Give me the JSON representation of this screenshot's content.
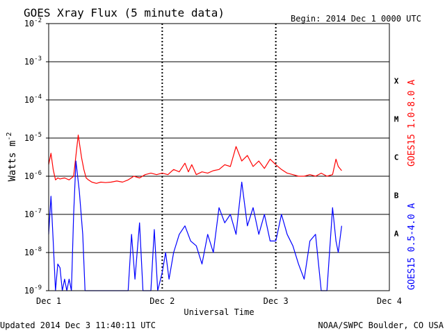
{
  "chart_data": {
    "type": "line",
    "title": "GOES Xray Flux (5 minute data)",
    "begin_label": "Begin:  2014 Dec 1 0000 UTC",
    "xlabel": "Universal Time",
    "ylabel": "Watts m",
    "ylabel_sup": "-2",
    "yscale": "log",
    "ylim": [
      1e-09,
      0.01
    ],
    "xlim": [
      0,
      3
    ],
    "x_unit": "days since 2014 Dec 1 0000 UTC",
    "x_ticks": [
      {
        "value": 0,
        "label": "Dec 1"
      },
      {
        "value": 1,
        "label": "Dec 2"
      },
      {
        "value": 2,
        "label": "Dec 3"
      },
      {
        "value": 3,
        "label": "Dec 4"
      }
    ],
    "y_ticks": [
      {
        "exp": -9,
        "base": "10",
        "sup": "-9"
      },
      {
        "exp": -8,
        "base": "10",
        "sup": "-8"
      },
      {
        "exp": -7,
        "base": "10",
        "sup": "-7"
      },
      {
        "exp": -6,
        "base": "10",
        "sup": "-6"
      },
      {
        "exp": -5,
        "base": "10",
        "sup": "-5"
      },
      {
        "exp": -4,
        "base": "10",
        "sup": "-4"
      },
      {
        "exp": -3,
        "base": "10",
        "sup": "-3"
      },
      {
        "exp": -2,
        "base": "10",
        "sup": "-2"
      }
    ],
    "flare_classes": [
      {
        "label": "A",
        "value": 3.16e-08
      },
      {
        "label": "B",
        "value": 3.16e-07
      },
      {
        "label": "C",
        "value": 3.16e-06
      },
      {
        "label": "M",
        "value": 3.16e-05
      },
      {
        "label": "X",
        "value": 0.000316
      }
    ],
    "grid": true,
    "series": [
      {
        "name": "GOES15 1.0-8.0 A",
        "color": "#ff0000",
        "x": [
          0.0,
          0.02,
          0.04,
          0.06,
          0.08,
          0.1,
          0.14,
          0.18,
          0.22,
          0.26,
          0.29,
          0.31,
          0.33,
          0.35,
          0.38,
          0.42,
          0.46,
          0.5,
          0.55,
          0.6,
          0.65,
          0.7,
          0.75,
          0.8,
          0.85,
          0.9,
          0.95,
          1.0,
          1.05,
          1.1,
          1.15,
          1.2,
          1.23,
          1.26,
          1.3,
          1.35,
          1.4,
          1.45,
          1.5,
          1.55,
          1.6,
          1.65,
          1.7,
          1.75,
          1.8,
          1.85,
          1.9,
          1.95,
          2.0,
          2.05,
          2.1,
          2.15,
          2.2,
          2.25,
          2.3,
          2.35,
          2.4,
          2.45,
          2.5,
          2.53,
          2.55,
          2.58
        ],
        "y": [
          2e-06,
          4e-06,
          1.5e-06,
          8e-07,
          9e-07,
          8.5e-07,
          9e-07,
          8e-07,
          1e-06,
          1.2e-05,
          3e-06,
          1.5e-06,
          9e-07,
          8e-07,
          7e-07,
          6.5e-07,
          7e-07,
          6.8e-07,
          7e-07,
          7.5e-07,
          7e-07,
          8e-07,
          1e-06,
          9e-07,
          1.1e-06,
          1.2e-06,
          1.1e-06,
          1.2e-06,
          1.1e-06,
          1.5e-06,
          1.3e-06,
          2.2e-06,
          1.3e-06,
          2e-06,
          1.1e-06,
          1.3e-06,
          1.2e-06,
          1.4e-06,
          1.5e-06,
          2e-06,
          1.8e-06,
          6e-06,
          2.5e-06,
          3.5e-06,
          1.8e-06,
          2.5e-06,
          1.6e-06,
          2.8e-06,
          2e-06,
          1.5e-06,
          1.2e-06,
          1.1e-06,
          1e-06,
          1e-06,
          1.1e-06,
          1e-06,
          1.2e-06,
          1e-06,
          1.1e-06,
          2.8e-06,
          1.8e-06,
          1.4e-06
        ]
      },
      {
        "name": "GOES15 0.5-4.0 A",
        "color": "#0000ff",
        "x": [
          0.0,
          0.02,
          0.04,
          0.06,
          0.08,
          0.1,
          0.12,
          0.14,
          0.16,
          0.18,
          0.2,
          0.22,
          0.24,
          0.27,
          0.3,
          0.32,
          0.35,
          0.38,
          0.42,
          0.46,
          0.5,
          0.55,
          0.6,
          0.65,
          0.7,
          0.73,
          0.76,
          0.8,
          0.83,
          0.86,
          0.9,
          0.93,
          0.96,
          1.0,
          1.03,
          1.06,
          1.1,
          1.15,
          1.2,
          1.25,
          1.3,
          1.35,
          1.4,
          1.45,
          1.5,
          1.55,
          1.6,
          1.65,
          1.7,
          1.75,
          1.8,
          1.85,
          1.9,
          1.95,
          2.0,
          2.05,
          2.1,
          2.15,
          2.2,
          2.25,
          2.3,
          2.35,
          2.4,
          2.45,
          2.5,
          2.53,
          2.55,
          2.58
        ],
        "y": [
          3e-08,
          3e-07,
          2e-08,
          1e-09,
          5e-09,
          4e-09,
          1e-09,
          2e-09,
          1e-09,
          2e-09,
          1e-09,
          1e-07,
          2.5e-06,
          4e-07,
          3e-08,
          1e-09,
          1e-09,
          1e-09,
          1e-09,
          1e-09,
          1e-09,
          1e-09,
          1e-09,
          1e-09,
          1e-09,
          3e-08,
          2e-09,
          6e-08,
          1e-09,
          1e-09,
          1e-09,
          4e-08,
          1e-09,
          3e-09,
          1e-08,
          2e-09,
          1e-08,
          3e-08,
          5e-08,
          2e-08,
          1.5e-08,
          5e-09,
          3e-08,
          1e-08,
          1.5e-07,
          6e-08,
          1e-07,
          3e-08,
          7e-07,
          5e-08,
          1.5e-07,
          3e-08,
          1e-07,
          2e-08,
          2e-08,
          1e-07,
          3e-08,
          1.5e-08,
          5e-09,
          2e-09,
          2e-08,
          3e-08,
          1e-09,
          1e-09,
          1.5e-07,
          2e-08,
          1e-08,
          5e-08
        ]
      }
    ]
  },
  "footer": {
    "updated": "Updated 2014 Dec  3 11:40:11 UTC",
    "source": "NOAA/SWPC Boulder, CO USA"
  }
}
